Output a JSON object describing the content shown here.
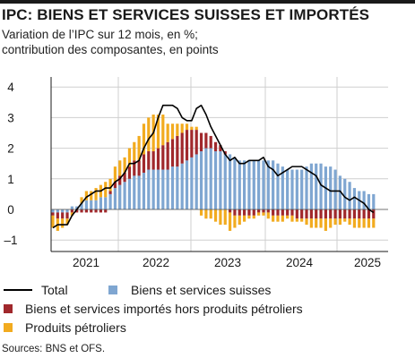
{
  "title": "IPC: BIENS ET SERVICES SUISSES ET IMPORTÉS",
  "subtitle_line1": "Variation de l’IPC sur 12 mois, en %;",
  "subtitle_line2": "contribution des composantes, en points",
  "source": "Sources: BNS et OFS.",
  "colors": {
    "domestic": "#7fa6d1",
    "imported": "#a0282c",
    "oil": "#f2ab1f",
    "total": "#000000",
    "grid": "#cfcfcf"
  },
  "chart_data": {
    "type": "bar",
    "stacked": true,
    "ylim": [
      -1.2,
      4.25
    ],
    "yticks": [
      -1,
      0,
      1,
      2,
      3,
      4
    ],
    "ytick_labels": [
      "–1",
      "0",
      "1",
      "2",
      "3",
      "4"
    ],
    "x_axis_labels": [
      "2021",
      "2022",
      "2023",
      "2024",
      "2025"
    ],
    "x_start": "2020-10",
    "grid": "horizontal",
    "legend_position": "bottom",
    "series": [
      {
        "name": "Biens et services suisses",
        "kind": "bar",
        "values": [
          -0.1,
          -0.1,
          -0.1,
          -0.1,
          0.1,
          0.1,
          0.2,
          0.3,
          0.3,
          0.3,
          0.4,
          0.4,
          0.5,
          0.7,
          0.8,
          0.9,
          1.0,
          1.1,
          1.1,
          1.2,
          1.3,
          1.3,
          1.3,
          1.3,
          1.3,
          1.4,
          1.4,
          1.5,
          1.6,
          1.7,
          1.8,
          1.9,
          2.0,
          2.0,
          1.9,
          1.9,
          1.8,
          1.8,
          1.7,
          1.6,
          1.6,
          1.6,
          1.6,
          1.6,
          1.6,
          1.6,
          1.6,
          1.5,
          1.4,
          1.3,
          1.3,
          1.3,
          1.3,
          1.4,
          1.5,
          1.5,
          1.5,
          1.4,
          1.4,
          1.3,
          1.1,
          1.0,
          0.9,
          0.7,
          0.6,
          0.6,
          0.5,
          0.5
        ]
      },
      {
        "name": "Biens et services importés hors produits pétroliers",
        "kind": "bar",
        "values": [
          -0.1,
          -0.2,
          -0.2,
          -0.2,
          -0.1,
          -0.1,
          -0.1,
          -0.1,
          -0.1,
          -0.1,
          -0.1,
          -0.1,
          0.1,
          0.2,
          0.3,
          0.3,
          0.4,
          0.5,
          0.5,
          0.6,
          0.6,
          0.6,
          0.7,
          0.8,
          0.9,
          0.9,
          1.0,
          1.0,
          1.0,
          0.9,
          0.8,
          0.6,
          0.5,
          0.4,
          0.3,
          0.2,
          0.1,
          -0.1,
          -0.2,
          -0.2,
          -0.2,
          -0.2,
          -0.2,
          -0.1,
          -0.1,
          -0.1,
          -0.2,
          -0.2,
          -0.2,
          -0.2,
          -0.2,
          -0.3,
          -0.3,
          -0.3,
          -0.3,
          -0.3,
          -0.3,
          -0.3,
          -0.3,
          -0.3,
          -0.3,
          -0.3,
          -0.3,
          -0.3,
          -0.3,
          -0.3,
          -0.3,
          -0.3
        ]
      },
      {
        "name": "Produits pétroliers",
        "kind": "bar",
        "values": [
          -0.4,
          -0.4,
          -0.3,
          -0.2,
          -0.1,
          0.0,
          0.2,
          0.3,
          0.3,
          0.4,
          0.4,
          0.5,
          0.4,
          0.5,
          0.5,
          0.5,
          0.6,
          0.6,
          0.8,
          1.0,
          1.1,
          1.2,
          1.1,
          1.0,
          0.6,
          0.5,
          0.4,
          0.3,
          0.2,
          0.1,
          0.1,
          -0.2,
          -0.3,
          -0.3,
          -0.4,
          -0.5,
          -0.5,
          -0.6,
          -0.4,
          -0.3,
          -0.2,
          -0.1,
          -0.1,
          -0.1,
          -0.1,
          -0.2,
          -0.2,
          -0.2,
          -0.2,
          -0.1,
          -0.2,
          -0.1,
          -0.1,
          -0.2,
          -0.3,
          -0.3,
          -0.3,
          -0.4,
          -0.3,
          -0.2,
          -0.2,
          -0.1,
          -0.2,
          -0.3,
          -0.3,
          -0.3,
          -0.3,
          -0.3
        ]
      },
      {
        "name": "Total",
        "kind": "line",
        "values": [
          -0.6,
          -0.5,
          -0.5,
          -0.5,
          -0.2,
          0.0,
          0.2,
          0.4,
          0.5,
          0.6,
          0.6,
          0.7,
          0.7,
          0.9,
          1.0,
          1.2,
          1.5,
          1.5,
          1.6,
          2.0,
          2.3,
          2.5,
          3.0,
          3.4,
          3.4,
          3.4,
          3.3,
          3.0,
          2.9,
          2.9,
          3.3,
          3.4,
          3.1,
          2.7,
          2.4,
          2.1,
          1.8,
          1.6,
          1.7,
          1.5,
          1.5,
          1.6,
          1.6,
          1.6,
          1.7,
          1.4,
          1.3,
          1.1,
          1.2,
          1.3,
          1.4,
          1.4,
          1.4,
          1.3,
          1.2,
          1.1,
          0.8,
          0.7,
          0.6,
          0.6,
          0.6,
          0.4,
          0.3,
          0.4,
          0.3,
          0.2,
          0.0,
          -0.1
        ]
      }
    ]
  }
}
